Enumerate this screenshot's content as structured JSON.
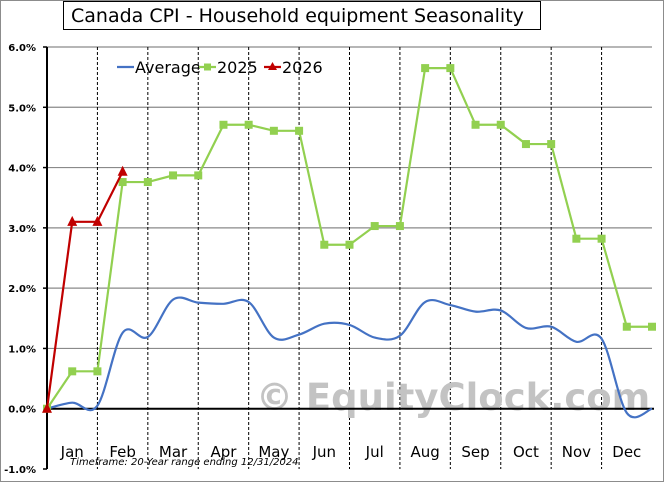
{
  "title": "Canada  CPI - Household equipment Seasonality",
  "watermark": "© EquityClock.com",
  "footnote": "Timeframe: 20-Year range ending 12/31/2024",
  "legend": [
    {
      "label": "Average",
      "color": "#4472c4",
      "marker": "none"
    },
    {
      "label": "2025",
      "color": "#92d050",
      "marker": "square"
    },
    {
      "label": "2026",
      "color": "#c00000",
      "marker": "triangle"
    }
  ],
  "chart_data": {
    "type": "line",
    "title": "Canada  CPI - Household equipment Seasonality",
    "xlabel": "",
    "ylabel": "",
    "ylim": [
      -1.0,
      6.0
    ],
    "yticks": [
      "6.0%",
      "5.0%",
      "4.0%",
      "3.0%",
      "2.0%",
      "1.0%",
      "0.0%",
      "-1.0%"
    ],
    "ytick_values": [
      6,
      5,
      4,
      3,
      2,
      1,
      0,
      -1
    ],
    "categories": [
      "Jan",
      "Feb",
      "Mar",
      "Apr",
      "May",
      "Jun",
      "Jul",
      "Aug",
      "Sep",
      "Oct",
      "Nov",
      "Dec"
    ],
    "x_note": "Each month has a mid-month point and an end-of-month point; index 0 is start of year.",
    "x": [
      0,
      0.5,
      1,
      1.5,
      2,
      2.5,
      3,
      3.5,
      4,
      4.5,
      5,
      5.5,
      6,
      6.5,
      7,
      7.5,
      8,
      8.5,
      9,
      9.5,
      10,
      10.5,
      11,
      11.5,
      12
    ],
    "series": [
      {
        "name": "Average",
        "color": "#4472c4",
        "smooth": true,
        "values": [
          0.0,
          0.1,
          0.05,
          1.26,
          1.19,
          1.81,
          1.76,
          1.74,
          1.77,
          1.18,
          1.23,
          1.41,
          1.39,
          1.18,
          1.21,
          1.77,
          1.72,
          1.61,
          1.63,
          1.34,
          1.36,
          1.11,
          1.16,
          -0.07,
          0.0
        ]
      },
      {
        "name": "2025",
        "color": "#92d050",
        "marker": "square",
        "values": [
          0.0,
          0.62,
          0.62,
          3.76,
          3.76,
          3.87,
          3.87,
          4.71,
          4.71,
          4.61,
          4.61,
          2.72,
          2.72,
          3.03,
          3.03,
          5.65,
          5.65,
          4.71,
          4.71,
          4.39,
          4.39,
          2.82,
          2.82,
          1.36,
          1.36
        ]
      },
      {
        "name": "2026",
        "color": "#c00000",
        "marker": "triangle",
        "values": [
          0.0,
          3.1,
          3.1,
          3.93
        ]
      }
    ],
    "grid": {
      "horizontal": true,
      "vertical_dashed_month_separators": true
    },
    "legend_position": "top-left inside plot"
  }
}
